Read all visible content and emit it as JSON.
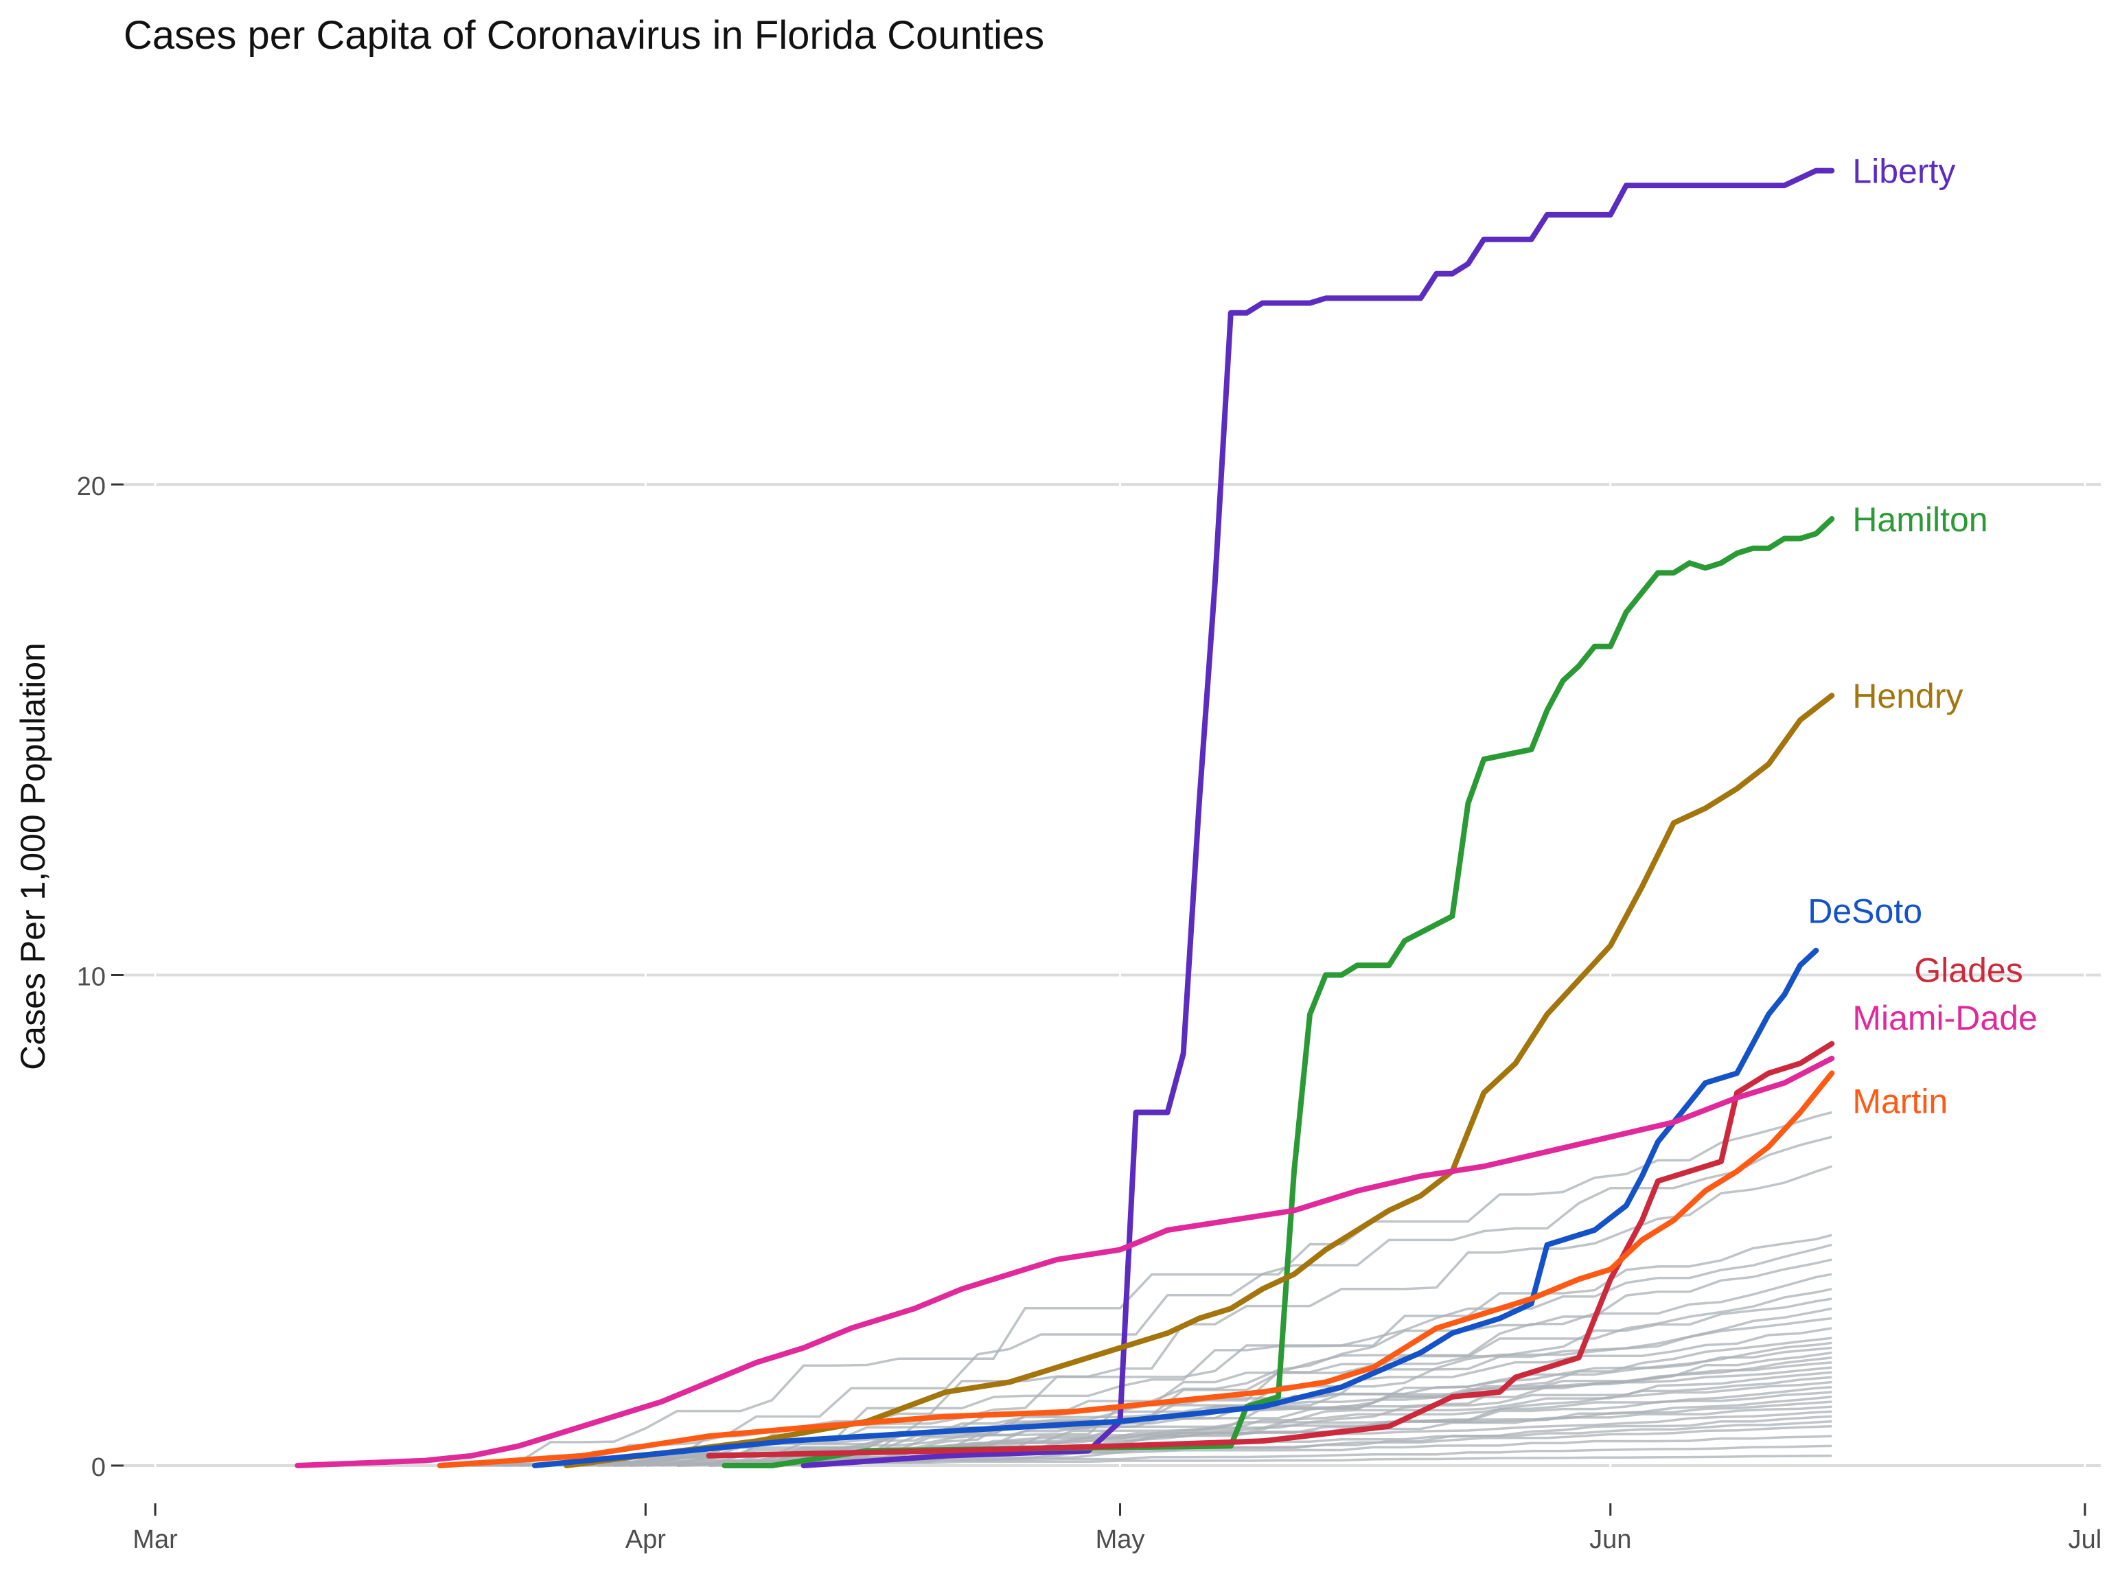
{
  "chart_data": {
    "type": "line",
    "title": "Cases per Capita of Coronavirus in Florida Counties",
    "xlabel": "",
    "ylabel": "Cases Per 1,000 Population",
    "x_ticks": [
      "Mar",
      "Apr",
      "May",
      "Jun",
      "Jul"
    ],
    "x_tick_dates": [
      "2020-03-01",
      "2020-04-01",
      "2020-05-01",
      "2020-06-01",
      "2020-07-01"
    ],
    "y_ticks": [
      0,
      10,
      20
    ],
    "xlim": [
      "2020-02-28",
      "2020-07-02"
    ],
    "ylim": [
      -0.7,
      28.2
    ],
    "grid": true,
    "legend": "direct labels at line ends",
    "background_series_color": "#a9b0b6",
    "highlight_series": [
      {
        "name": "Liberty",
        "color": "#5b2cbf",
        "points": [
          [
            "2020-04-11",
            0
          ],
          [
            "2020-04-20",
            0.2
          ],
          [
            "2020-04-29",
            0.3
          ],
          [
            "2020-05-01",
            0.9
          ],
          [
            "2020-05-02",
            7.2
          ],
          [
            "2020-05-04",
            7.2
          ],
          [
            "2020-05-05",
            8.4
          ],
          [
            "2020-05-06",
            13.5
          ],
          [
            "2020-05-07",
            18.0
          ],
          [
            "2020-05-08",
            23.5
          ],
          [
            "2020-05-09",
            23.5
          ],
          [
            "2020-05-10",
            23.7
          ],
          [
            "2020-05-13",
            23.7
          ],
          [
            "2020-05-14",
            23.8
          ],
          [
            "2020-05-20",
            23.8
          ],
          [
            "2020-05-21",
            24.3
          ],
          [
            "2020-05-22",
            24.3
          ],
          [
            "2020-05-23",
            24.5
          ],
          [
            "2020-05-24",
            25.0
          ],
          [
            "2020-05-27",
            25.0
          ],
          [
            "2020-05-28",
            25.5
          ],
          [
            "2020-06-01",
            25.5
          ],
          [
            "2020-06-02",
            26.1
          ],
          [
            "2020-06-12",
            26.1
          ],
          [
            "2020-06-14",
            26.4
          ],
          [
            "2020-06-15",
            26.4
          ]
        ]
      },
      {
        "name": "Hamilton",
        "color": "#2a9a35",
        "points": [
          [
            "2020-04-06",
            0
          ],
          [
            "2020-04-09",
            0
          ],
          [
            "2020-04-15",
            0.3
          ],
          [
            "2020-05-08",
            0.4
          ],
          [
            "2020-05-09",
            1.2
          ],
          [
            "2020-05-11",
            1.4
          ],
          [
            "2020-05-12",
            6.0
          ],
          [
            "2020-05-13",
            9.2
          ],
          [
            "2020-05-14",
            10.0
          ],
          [
            "2020-05-15",
            10.0
          ],
          [
            "2020-05-16",
            10.2
          ],
          [
            "2020-05-18",
            10.2
          ],
          [
            "2020-05-19",
            10.7
          ],
          [
            "2020-05-22",
            11.2
          ],
          [
            "2020-05-23",
            13.5
          ],
          [
            "2020-05-24",
            14.4
          ],
          [
            "2020-05-27",
            14.6
          ],
          [
            "2020-05-28",
            15.4
          ],
          [
            "2020-05-29",
            16.0
          ],
          [
            "2020-05-30",
            16.3
          ],
          [
            "2020-05-31",
            16.7
          ],
          [
            "2020-06-01",
            16.7
          ],
          [
            "2020-06-02",
            17.4
          ],
          [
            "2020-06-03",
            17.8
          ],
          [
            "2020-06-04",
            18.2
          ],
          [
            "2020-06-05",
            18.2
          ],
          [
            "2020-06-06",
            18.4
          ],
          [
            "2020-06-07",
            18.3
          ],
          [
            "2020-06-08",
            18.4
          ],
          [
            "2020-06-09",
            18.6
          ],
          [
            "2020-06-10",
            18.7
          ],
          [
            "2020-06-11",
            18.7
          ],
          [
            "2020-06-12",
            18.9
          ],
          [
            "2020-06-13",
            18.9
          ],
          [
            "2020-06-14",
            19.0
          ],
          [
            "2020-06-15",
            19.3
          ]
        ]
      },
      {
        "name": "Hendry",
        "color": "#a3750c",
        "points": [
          [
            "2020-03-27",
            0
          ],
          [
            "2020-04-08",
            0.5
          ],
          [
            "2020-04-15",
            0.9
          ],
          [
            "2020-04-20",
            1.5
          ],
          [
            "2020-04-24",
            1.7
          ],
          [
            "2020-04-28",
            2.1
          ],
          [
            "2020-05-01",
            2.4
          ],
          [
            "2020-05-04",
            2.7
          ],
          [
            "2020-05-06",
            3.0
          ],
          [
            "2020-05-08",
            3.2
          ],
          [
            "2020-05-10",
            3.6
          ],
          [
            "2020-05-12",
            3.9
          ],
          [
            "2020-05-14",
            4.4
          ],
          [
            "2020-05-16",
            4.8
          ],
          [
            "2020-05-18",
            5.2
          ],
          [
            "2020-05-20",
            5.5
          ],
          [
            "2020-05-22",
            6.0
          ],
          [
            "2020-05-24",
            7.6
          ],
          [
            "2020-05-26",
            8.2
          ],
          [
            "2020-05-28",
            9.2
          ],
          [
            "2020-05-30",
            9.9
          ],
          [
            "2020-06-01",
            10.6
          ],
          [
            "2020-06-03",
            11.8
          ],
          [
            "2020-06-05",
            13.1
          ],
          [
            "2020-06-07",
            13.4
          ],
          [
            "2020-06-09",
            13.8
          ],
          [
            "2020-06-11",
            14.3
          ],
          [
            "2020-06-13",
            15.2
          ],
          [
            "2020-06-15",
            15.7
          ]
        ]
      },
      {
        "name": "DeSoto",
        "color": "#1452c8",
        "points": [
          [
            "2020-03-25",
            0
          ],
          [
            "2020-04-10",
            0.5
          ],
          [
            "2020-04-20",
            0.7
          ],
          [
            "2020-05-01",
            0.9
          ],
          [
            "2020-05-10",
            1.2
          ],
          [
            "2020-05-15",
            1.6
          ],
          [
            "2020-05-20",
            2.3
          ],
          [
            "2020-05-22",
            2.7
          ],
          [
            "2020-05-25",
            3.0
          ],
          [
            "2020-05-27",
            3.3
          ],
          [
            "2020-05-28",
            4.5
          ],
          [
            "2020-05-31",
            4.8
          ],
          [
            "2020-06-02",
            5.3
          ],
          [
            "2020-06-03",
            5.9
          ],
          [
            "2020-06-04",
            6.6
          ],
          [
            "2020-06-06",
            7.4
          ],
          [
            "2020-06-07",
            7.8
          ],
          [
            "2020-06-09",
            8.0
          ],
          [
            "2020-06-10",
            8.6
          ],
          [
            "2020-06-11",
            9.2
          ],
          [
            "2020-06-12",
            9.6
          ],
          [
            "2020-06-13",
            10.2
          ],
          [
            "2020-06-14",
            10.5
          ]
        ]
      },
      {
        "name": "Glades",
        "color": "#cc2a3c",
        "points": [
          [
            "2020-04-05",
            0.2
          ],
          [
            "2020-04-20",
            0.3
          ],
          [
            "2020-05-01",
            0.4
          ],
          [
            "2020-05-10",
            0.5
          ],
          [
            "2020-05-18",
            0.8
          ],
          [
            "2020-05-20",
            1.1
          ],
          [
            "2020-05-22",
            1.4
          ],
          [
            "2020-05-25",
            1.5
          ],
          [
            "2020-05-26",
            1.8
          ],
          [
            "2020-05-28",
            2.0
          ],
          [
            "2020-05-30",
            2.2
          ],
          [
            "2020-06-01",
            3.8
          ],
          [
            "2020-06-02",
            4.4
          ],
          [
            "2020-06-03",
            5.0
          ],
          [
            "2020-06-04",
            5.8
          ],
          [
            "2020-06-06",
            6.0
          ],
          [
            "2020-06-08",
            6.2
          ],
          [
            "2020-06-09",
            7.6
          ],
          [
            "2020-06-11",
            8.0
          ],
          [
            "2020-06-13",
            8.2
          ],
          [
            "2020-06-15",
            8.6
          ]
        ]
      },
      {
        "name": "Miami-Dade",
        "color": "#e0299a",
        "points": [
          [
            "2020-03-10",
            0
          ],
          [
            "2020-03-14",
            0.05
          ],
          [
            "2020-03-18",
            0.1
          ],
          [
            "2020-03-21",
            0.2
          ],
          [
            "2020-03-24",
            0.4
          ],
          [
            "2020-03-27",
            0.7
          ],
          [
            "2020-03-30",
            1.0
          ],
          [
            "2020-04-02",
            1.3
          ],
          [
            "2020-04-05",
            1.7
          ],
          [
            "2020-04-08",
            2.1
          ],
          [
            "2020-04-11",
            2.4
          ],
          [
            "2020-04-14",
            2.8
          ],
          [
            "2020-04-18",
            3.2
          ],
          [
            "2020-04-21",
            3.6
          ],
          [
            "2020-04-24",
            3.9
          ],
          [
            "2020-04-27",
            4.2
          ],
          [
            "2020-05-01",
            4.4
          ],
          [
            "2020-05-04",
            4.8
          ],
          [
            "2020-05-08",
            5.0
          ],
          [
            "2020-05-12",
            5.2
          ],
          [
            "2020-05-16",
            5.6
          ],
          [
            "2020-05-20",
            5.9
          ],
          [
            "2020-05-24",
            6.1
          ],
          [
            "2020-05-28",
            6.4
          ],
          [
            "2020-06-01",
            6.7
          ],
          [
            "2020-06-05",
            7.0
          ],
          [
            "2020-06-09",
            7.5
          ],
          [
            "2020-06-12",
            7.8
          ],
          [
            "2020-06-15",
            8.3
          ]
        ]
      },
      {
        "name": "Martin",
        "color": "#ff5a14",
        "points": [
          [
            "2020-03-19",
            0
          ],
          [
            "2020-03-28",
            0.2
          ],
          [
            "2020-04-05",
            0.6
          ],
          [
            "2020-04-12",
            0.8
          ],
          [
            "2020-04-20",
            1.0
          ],
          [
            "2020-04-28",
            1.1
          ],
          [
            "2020-05-04",
            1.3
          ],
          [
            "2020-05-10",
            1.5
          ],
          [
            "2020-05-14",
            1.7
          ],
          [
            "2020-05-17",
            2.0
          ],
          [
            "2020-05-19",
            2.4
          ],
          [
            "2020-05-21",
            2.8
          ],
          [
            "2020-05-24",
            3.1
          ],
          [
            "2020-05-27",
            3.4
          ],
          [
            "2020-05-30",
            3.8
          ],
          [
            "2020-06-01",
            4.0
          ],
          [
            "2020-06-03",
            4.6
          ],
          [
            "2020-06-05",
            5.0
          ],
          [
            "2020-06-07",
            5.6
          ],
          [
            "2020-06-09",
            6.0
          ],
          [
            "2020-06-11",
            6.5
          ],
          [
            "2020-06-13",
            7.2
          ],
          [
            "2020-06-15",
            8.0
          ]
        ]
      }
    ],
    "background_series_end_values": [
      0.2,
      0.4,
      0.6,
      0.8,
      0.9,
      1.0,
      1.1,
      1.2,
      1.3,
      1.4,
      1.5,
      1.6,
      1.7,
      1.8,
      1.9,
      2.0,
      2.1,
      2.2,
      2.3,
      2.4,
      2.5,
      2.6,
      2.8,
      3.0,
      3.2,
      3.4,
      3.6,
      3.9,
      4.2,
      4.5,
      4.7,
      6.1,
      6.7,
      7.2
    ]
  }
}
